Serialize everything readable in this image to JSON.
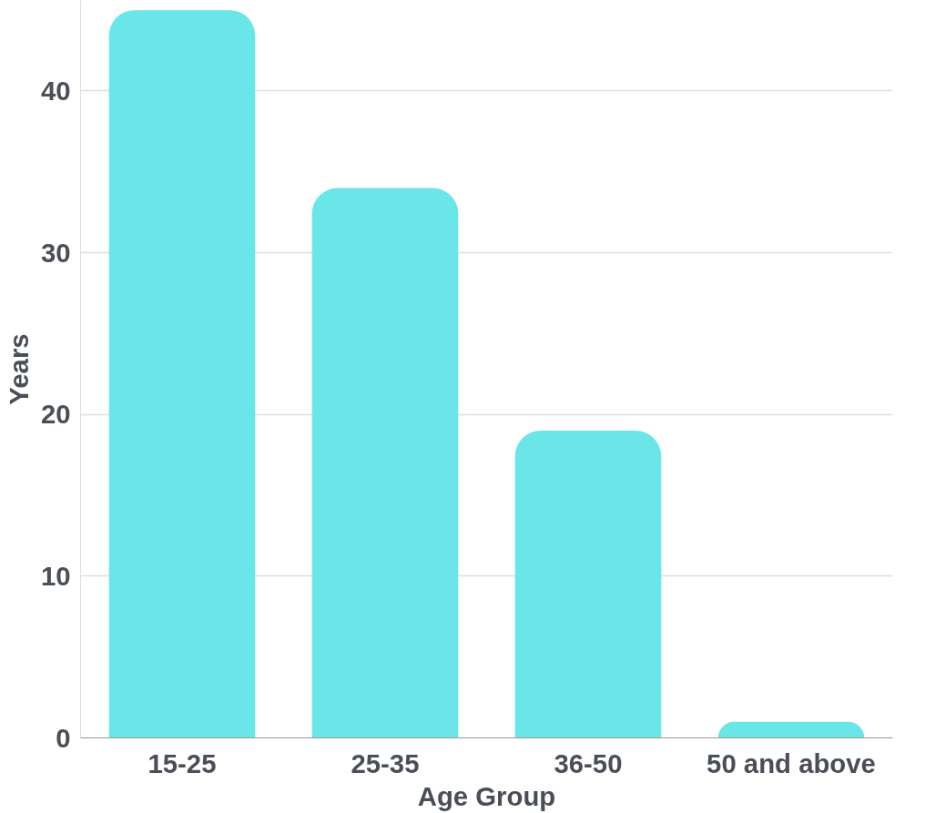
{
  "chart_data": {
    "type": "bar",
    "xlabel": "Age Group",
    "ylabel": "Years",
    "categories": [
      "15-25",
      "25-35",
      "36-50",
      "50 and above"
    ],
    "values": [
      45,
      34,
      19,
      1
    ],
    "color": "#6ae5e8",
    "ylim": [
      0,
      45.6
    ],
    "yticks": [
      0,
      10,
      20,
      30,
      40
    ],
    "grid": "y"
  }
}
